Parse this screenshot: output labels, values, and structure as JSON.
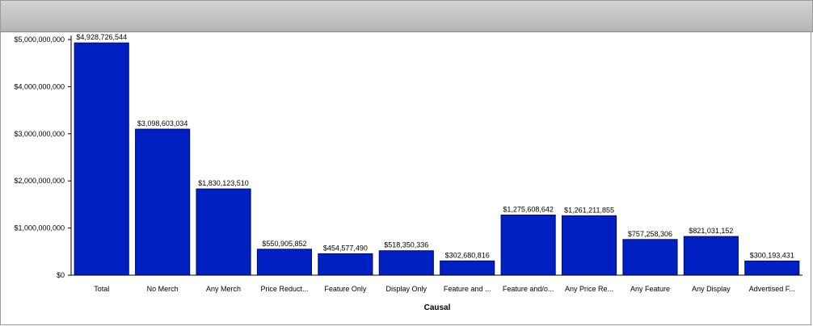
{
  "chart_data": {
    "type": "bar",
    "xlabel": "Causal",
    "ylabel": "",
    "ylim": [
      0,
      5000000000
    ],
    "yticks": [
      0,
      1000000000,
      2000000000,
      3000000000,
      4000000000,
      5000000000
    ],
    "ytick_labels": [
      "$0",
      "$1,000,000,000",
      "$2,000,000,000",
      "$3,000,000,000",
      "$4,000,000,000",
      "$5,000,000,000"
    ],
    "categories": [
      "Total",
      "No Merch",
      "Any Merch",
      "Price Reduct...",
      "Feature Only",
      "Display Only",
      "Feature and ...",
      "Feature and/o...",
      "Any Price Re...",
      "Any Feature",
      "Any Display",
      "Advertised F..."
    ],
    "values": [
      4928726544,
      3098603034,
      1830123510,
      550905852,
      454577490,
      518350336,
      302680816,
      1275608642,
      1261211855,
      757258306,
      821031152,
      300193431
    ],
    "data_labels": [
      "$4,928,726,544",
      "$3,098,603,034",
      "$1,830,123,510",
      "$550,905,852",
      "$454,577,490",
      "$518,350,336",
      "$302,680,816",
      "$1,275,608,642",
      "$1,261,211,855",
      "$757,258,306",
      "$821,031,152",
      "$300,193,431"
    ],
    "bar_color": "#0020c2",
    "grid": false,
    "legend": "none"
  }
}
